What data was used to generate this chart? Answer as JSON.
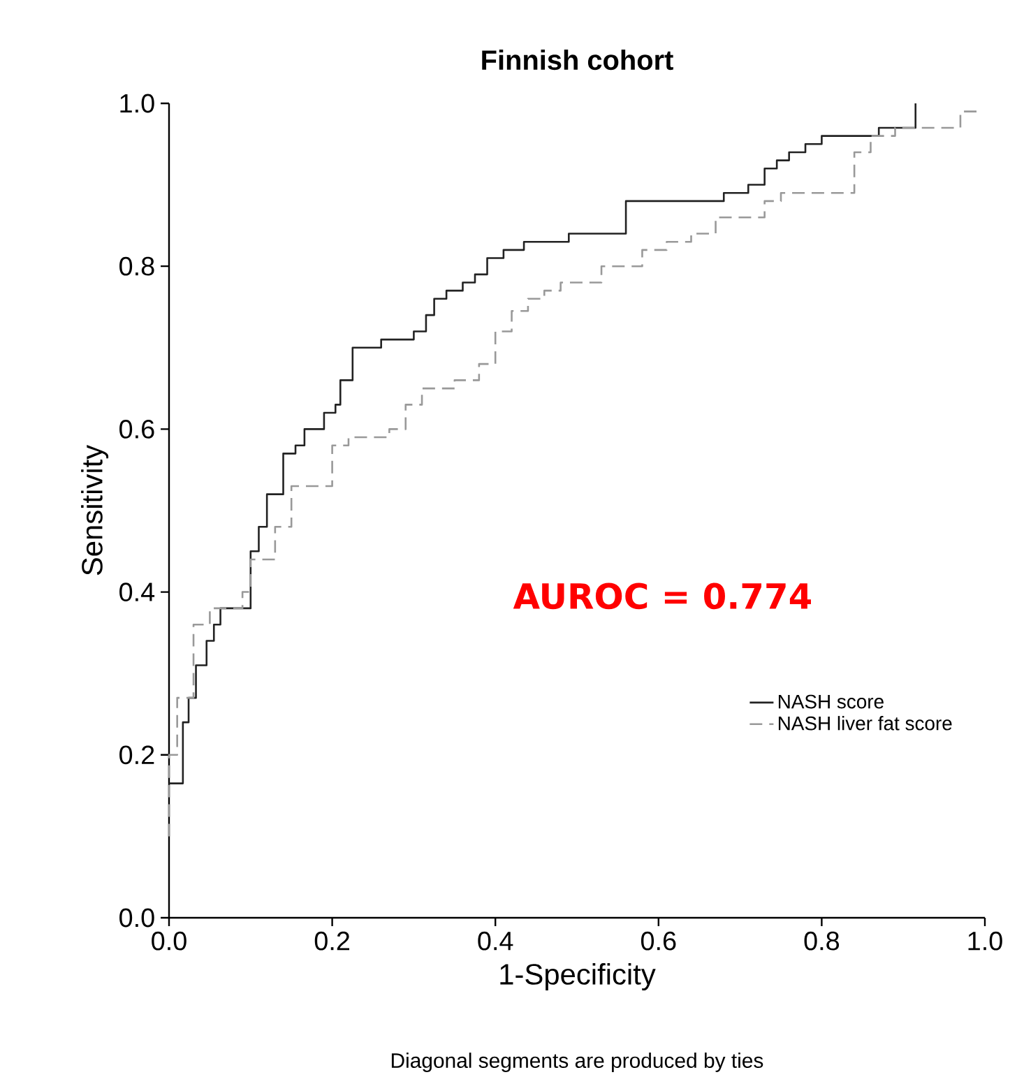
{
  "chart_data": {
    "type": "step",
    "title": "Finnish cohort",
    "xlabel": "1-Specificity",
    "ylabel": "Sensitivity",
    "xlim": [
      0,
      1
    ],
    "ylim": [
      0,
      1
    ],
    "xticks": [
      {
        "value": 0,
        "label": "0.0"
      },
      0.2,
      0.4,
      0.6,
      0.8,
      {
        "value": 1,
        "label": "1.0"
      }
    ],
    "yticks": [
      {
        "value": 0,
        "label": "0.0"
      },
      0.2,
      0.4,
      0.6,
      0.8,
      {
        "value": 1,
        "label": "1.0"
      }
    ],
    "annotations": [
      "AUROC = 0.774",
      "Diagonal segments are produced by ties"
    ],
    "legend": "bottom right",
    "grid": false,
    "series": [
      {
        "name": "NASH score",
        "color": "#222222",
        "line_style": "solid",
        "x": [
          0,
          0.017,
          0.024,
          0.033,
          0.046,
          0.055,
          0.063,
          0.1,
          0.11,
          0.12,
          0.14,
          0.155,
          0.166,
          0.19,
          0.204,
          0.21,
          0.225,
          0.26,
          0.3,
          0.315,
          0.325,
          0.34,
          0.36,
          0.375,
          0.39,
          0.41,
          0.435,
          0.49,
          0.56,
          0.68,
          0.71,
          0.73,
          0.745,
          0.76,
          0.78,
          0.8,
          0.87,
          0.915
        ],
        "values": [
          0.165,
          0.24,
          0.27,
          0.31,
          0.34,
          0.36,
          0.38,
          0.45,
          0.48,
          0.52,
          0.57,
          0.58,
          0.6,
          0.62,
          0.63,
          0.66,
          0.7,
          0.71,
          0.72,
          0.74,
          0.76,
          0.77,
          0.78,
          0.79,
          0.81,
          0.82,
          0.83,
          0.84,
          0.88,
          0.89,
          0.9,
          0.92,
          0.93,
          0.94,
          0.95,
          0.96,
          0.97,
          1.0
        ]
      },
      {
        "name": "NASH liver fat score",
        "color": "#999999",
        "line_style": "dashed",
        "x": [
          0,
          0,
          0.01,
          0.03,
          0.05,
          0.09,
          0.1,
          0.13,
          0.15,
          0.2,
          0.22,
          0.27,
          0.29,
          0.31,
          0.35,
          0.38,
          0.4,
          0.42,
          0.44,
          0.46,
          0.48,
          0.53,
          0.58,
          0.61,
          0.64,
          0.67,
          0.73,
          0.75,
          0.84,
          0.86,
          0.89,
          0.97,
          0.99
        ],
        "values": [
          0.1,
          0.2,
          0.27,
          0.36,
          0.38,
          0.4,
          0.44,
          0.48,
          0.53,
          0.58,
          0.59,
          0.6,
          0.63,
          0.65,
          0.66,
          0.68,
          0.72,
          0.745,
          0.76,
          0.77,
          0.78,
          0.8,
          0.82,
          0.83,
          0.84,
          0.86,
          0.88,
          0.89,
          0.94,
          0.96,
          0.97,
          0.99,
          0.99
        ]
      }
    ]
  }
}
